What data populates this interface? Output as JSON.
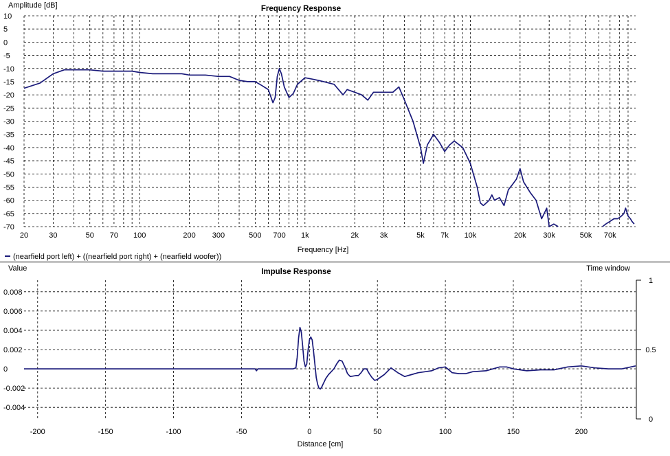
{
  "chart_data": [
    {
      "type": "line",
      "title": "Frequency Response",
      "xlabel": "Frequency [Hz]",
      "ylabel": "Amplitude [dB]",
      "x_scale": "log",
      "xlim": [
        20,
        100000
      ],
      "ylim": [
        -70,
        10
      ],
      "grid": true,
      "x_ticks": [
        20,
        30,
        50,
        70,
        100,
        200,
        300,
        500,
        700,
        1000,
        2000,
        3000,
        5000,
        7000,
        10000,
        20000,
        30000,
        50000,
        70000
      ],
      "x_tick_labels": [
        "20",
        "30",
        "50",
        "70",
        "100",
        "200",
        "300",
        "500",
        "700",
        "1k",
        "2k",
        "3k",
        "5k",
        "7k",
        "10k",
        "20k",
        "30k",
        "50k",
        "70k"
      ],
      "y_ticks": [
        10,
        5,
        0,
        -5,
        -10,
        -15,
        -20,
        -25,
        -30,
        -35,
        -40,
        -45,
        -50,
        -55,
        -60,
        -65,
        -70
      ],
      "legend": "bottom-left",
      "series": [
        {
          "name": "(nearfield port left) + ((nearfield port right) + (nearfield woofer))",
          "color": "#1a1a7a",
          "x": [
            20,
            25,
            30,
            35,
            40,
            50,
            60,
            70,
            80,
            90,
            100,
            120,
            150,
            180,
            200,
            250,
            300,
            350,
            400,
            450,
            500,
            550,
            600,
            640,
            660,
            680,
            700,
            720,
            750,
            800,
            850,
            900,
            1000,
            1100,
            1200,
            1300,
            1500,
            1700,
            1800,
            1900,
            2000,
            2200,
            2400,
            2600,
            2800,
            3000,
            3200,
            3400,
            3700,
            4000,
            4500,
            5000,
            5200,
            5500,
            6000,
            6500,
            7000,
            7500,
            8000,
            9000,
            10000,
            11000,
            11500,
            12000,
            12500,
            13000,
            13500,
            14000,
            15000,
            16000,
            17000,
            18000,
            19000,
            20000,
            21000,
            23000,
            25000,
            27000,
            28000,
            29000,
            30000,
            32000,
            34000
          ],
          "y": [
            -17.5,
            -15.5,
            -12,
            -10.5,
            -10.5,
            -10.5,
            -11,
            -11,
            -11,
            -11,
            -11.5,
            -12,
            -12,
            -12,
            -12.5,
            -12.5,
            -13,
            -13,
            -14.5,
            -15,
            -15,
            -16.5,
            -18,
            -23,
            -21,
            -13,
            -10,
            -12,
            -17,
            -21,
            -19.5,
            -16,
            -13.5,
            -14,
            -14.5,
            -15,
            -16,
            -20,
            -18,
            -18.5,
            -19,
            -20,
            -22,
            -19,
            -19,
            -19,
            -19,
            -19,
            -17,
            -22,
            -30,
            -40,
            -46,
            -39,
            -35,
            -38,
            -41.5,
            -39,
            -37.5,
            -40,
            -46,
            -55,
            -61,
            -62,
            -61,
            -60,
            -58,
            -60,
            -59,
            -62,
            -56,
            -54,
            -52,
            -48,
            -53,
            -57,
            -60,
            -67,
            -65,
            -63,
            -70,
            -69,
            -70
          ]
        },
        {
          "name": "",
          "color": "#1a1a7a",
          "x": [
            63000,
            66000,
            70000,
            74000,
            78000,
            82000,
            85000,
            87000,
            90000,
            93000,
            95000,
            98000
          ],
          "y": [
            -70,
            -69,
            -68,
            -67,
            -67,
            -66,
            -65,
            -63,
            -66,
            -67,
            -68,
            -69
          ]
        }
      ]
    },
    {
      "type": "line",
      "title": "Impulse Response",
      "xlabel": "Distance [cm]",
      "ylabel": "Value",
      "y2label": "Time window",
      "xlim": [
        -210,
        240
      ],
      "ylim": [
        -0.0052,
        0.0092
      ],
      "y2lim": [
        0,
        1
      ],
      "grid": true,
      "x_ticks": [
        -200,
        -150,
        -100,
        -50,
        0,
        50,
        100,
        150,
        200
      ],
      "x_tick_labels": [
        "-200",
        "-150",
        "-100",
        "-50",
        "0",
        "50",
        "100",
        "150",
        "200"
      ],
      "y_ticks": [
        0.008,
        0.006,
        0.004,
        0.002,
        0,
        -0.002,
        -0.004
      ],
      "y_tick_labels": [
        "0.008",
        "0.006",
        "0.004",
        "0.002",
        "0",
        "-0.002",
        "-0.004"
      ],
      "y2_ticks": [
        1,
        0.5,
        0
      ],
      "y2_tick_labels": [
        "1",
        "0.5",
        "0"
      ],
      "series": [
        {
          "name": "",
          "color": "#1a1a7a",
          "x": [
            -210,
            -40,
            -39,
            -38,
            -20,
            -12,
            -10,
            -9,
            -8,
            -7,
            -6,
            -5,
            -4,
            -3,
            -2,
            -1,
            0,
            1,
            2,
            3,
            4,
            5,
            6,
            7,
            8,
            9,
            10,
            12,
            14,
            16,
            18,
            20,
            22,
            24,
            26,
            28,
            30,
            34,
            36,
            38,
            40,
            42,
            44,
            46,
            48,
            50,
            55,
            60,
            65,
            70,
            75,
            80,
            85,
            90,
            95,
            100,
            105,
            110,
            115,
            120,
            130,
            140,
            145,
            150,
            160,
            170,
            180,
            190,
            200,
            210,
            220,
            230,
            240
          ],
          "y": [
            0,
            0,
            -0.0002,
            0,
            0,
            0,
            0.0001,
            0.0012,
            0.0032,
            0.0043,
            0.0038,
            0.0024,
            0.0008,
            0.0002,
            0.0005,
            0.002,
            0.003,
            0.0033,
            0.003,
            0.0018,
            0.0005,
            -0.0009,
            -0.0016,
            -0.002,
            -0.0021,
            -0.0019,
            -0.0016,
            -0.001,
            -0.0006,
            -0.0003,
            0,
            0.0005,
            0.0009,
            0.0008,
            0.0002,
            -0.0005,
            -0.0008,
            -0.0007,
            -0.0007,
            -0.0004,
            0,
            0,
            -0.0005,
            -0.0009,
            -0.0012,
            -0.0011,
            -0.0006,
            0.0001,
            -0.0004,
            -0.0008,
            -0.0006,
            -0.0004,
            -0.0003,
            -0.0002,
            0.0001,
            0.0002,
            -0.0004,
            -0.0005,
            -0.0005,
            -0.0003,
            -0.0002,
            0.0002,
            0.0002,
            0,
            -0.0002,
            -0.0001,
            -0.0001,
            0.0002,
            0.0003,
            0.0001,
            0,
            0,
            0.0003
          ]
        }
      ]
    }
  ]
}
